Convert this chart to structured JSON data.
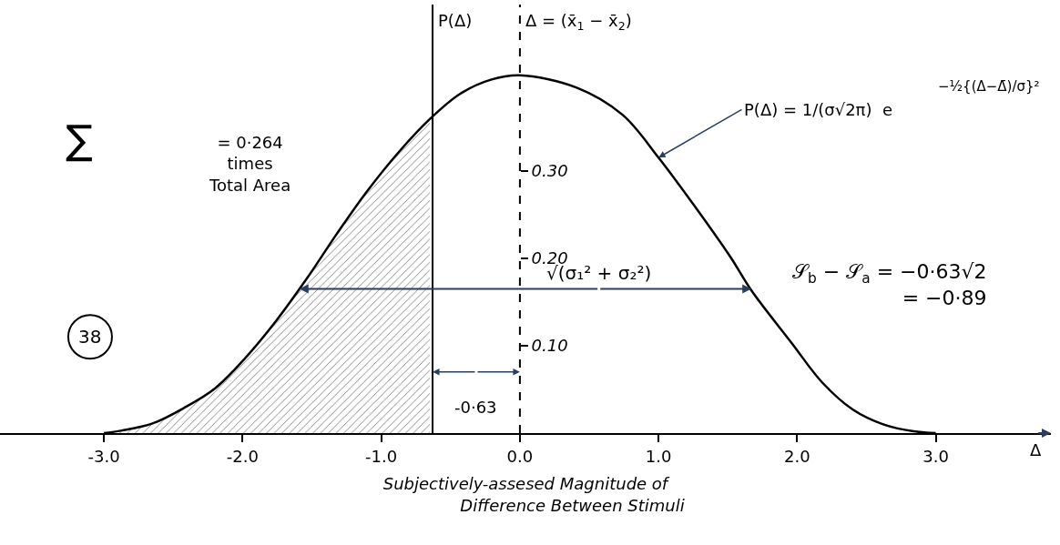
{
  "chart_data": {
    "type": "line",
    "xlabel": "Subjectively-assesed Magnitude of\n                  Difference Between Stimuli",
    "xlim": [
      -3.75,
      3.83
    ],
    "ylim": [
      0,
      0.49
    ],
    "xticks": [
      {
        "value": -3,
        "label": "-3.0"
      },
      {
        "value": -2,
        "label": "-2.0"
      },
      {
        "value": -1,
        "label": "-1.0"
      },
      {
        "value": 0,
        "label": "0.0"
      },
      {
        "value": 1,
        "label": "1.0"
      },
      {
        "value": 2,
        "label": "2.0"
      },
      {
        "value": 3,
        "label": "3.0"
      }
    ],
    "yticks": [
      {
        "value": 0.1,
        "label": "0.10"
      },
      {
        "value": 0.2,
        "label": "0.20"
      },
      {
        "value": 0.3,
        "label": "0.30"
      }
    ],
    "series": [
      {
        "color": "#000000",
        "x": [
          -3.0,
          -2.87,
          -2.65,
          -2.42,
          -2.2,
          -1.98,
          -1.76,
          -1.54,
          -1.32,
          -1.1,
          -0.87,
          -0.65,
          -0.43,
          -0.21,
          0.0,
          0.41,
          0.74,
          1.0,
          1.29,
          1.52,
          1.67,
          1.96,
          2.18,
          2.4,
          2.62,
          2.84,
          3.0
        ],
        "values": [
          0.0,
          0.003,
          0.011,
          0.029,
          0.051,
          0.086,
          0.128,
          0.176,
          0.228,
          0.277,
          0.322,
          0.359,
          0.388,
          0.404,
          0.409,
          0.395,
          0.364,
          0.315,
          0.253,
          0.201,
          0.163,
          0.103,
          0.058,
          0.027,
          0.01,
          0.002,
          0.0
        ]
      },
      {
        "type": "area",
        "color": "#000000",
        "x": [
          -3.0,
          -2.87,
          -2.65,
          -2.42,
          -2.2,
          -1.98,
          -1.76,
          -1.54,
          -1.32,
          -1.1,
          -0.87,
          -0.65
        ],
        "values": [
          0.0,
          0.003,
          0.011,
          0.029,
          0.051,
          0.086,
          0.128,
          0.176,
          0.228,
          0.277,
          0.322,
          0.359
        ]
      }
    ],
    "ref_lines": [
      {
        "axis": "x",
        "value": -0.63,
        "label": "P(Δ)",
        "line_style": "solid",
        "color": "#000000"
      },
      {
        "axis": "x",
        "value": 0,
        "label": "Δ = (x̄$_{1}$ − x̄$_{2}$)",
        "line_style": "dashed",
        "color": "#000000"
      }
    ],
    "annotations": [
      "∑",
      "= 0·264\ntimes\nTotal Area",
      {
        "text": "P(Δ) = 1/(σ√2π)  e",
        "x": 1.0,
        "y": 0.315
      },
      {
        "text": "√(σ₁² + σ₂²)",
        "x": 1.67,
        "y": 0.165
      },
      "𝒮$_{b}$ − 𝒮$_{a}$ = −0·63√2\n= −0·89",
      "38",
      "-0·63",
      "Δ",
      "−½{(Δ−Δ̄)/σ}²"
    ]
  }
}
